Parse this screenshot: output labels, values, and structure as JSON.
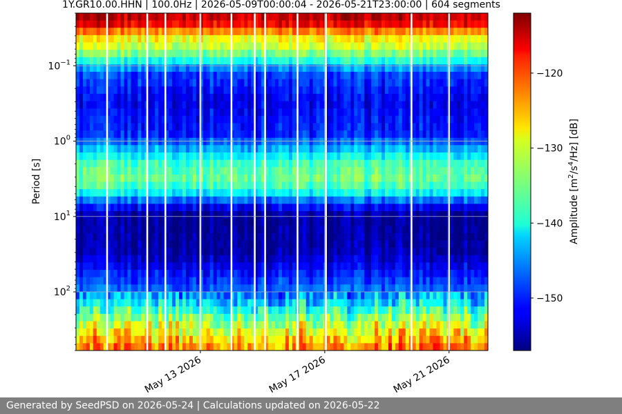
{
  "chart_data": {
    "type": "heatmap",
    "title": "1Y.GR10.00.HHN | 100.0Hz | 2026-05-09T00:00:04 - 2026-05-21T23:00:00 | 604 segments",
    "xlabel": "",
    "ylabel": "Period [s]",
    "yscale": "log",
    "y_inverted": true,
    "ylim": [
      0.02,
      600
    ],
    "yticks": [
      {
        "value": 0.1,
        "base": "10",
        "exp": "−1"
      },
      {
        "value": 1,
        "base": "10",
        "exp": "0"
      },
      {
        "value": 10,
        "base": "10",
        "exp": "1"
      },
      {
        "value": 100,
        "base": "10",
        "exp": "2"
      }
    ],
    "xlim": [
      "2026-05-09",
      "2026-05-22T06:00"
    ],
    "xticks": [
      {
        "date": "2026-05-13",
        "label": "May 13 2026"
      },
      {
        "date": "2026-05-17",
        "label": "May 17 2026"
      },
      {
        "date": "2026-05-21",
        "label": "May 21 2026"
      }
    ],
    "grid": true,
    "colormap": "jet",
    "colorbar": {
      "label": "Amplitude [m²/s⁴/Hz] [dB]",
      "range": [
        -157,
        -112
      ],
      "ticks": [
        -120,
        -130,
        -140,
        -150
      ]
    },
    "data_gaps": [
      "2026-05-10T00:00",
      "2026-05-11T07:00",
      "2026-05-11T21:00",
      "2026-05-13T00:00",
      "2026-05-14T00:00",
      "2026-05-14T18:00",
      "2026-05-15T02:00",
      "2026-05-16T03:00",
      "2026-05-17T01:00",
      "2026-05-19T19:00",
      "2026-05-21T00:00"
    ],
    "spectral_bands": [
      {
        "period_range": [
          0.02,
          0.035
        ],
        "level_db": -118
      },
      {
        "period_range": [
          0.035,
          0.08
        ],
        "level_db": -131
      },
      {
        "period_range": [
          0.12,
          0.9
        ],
        "level_db": -151
      },
      {
        "period_range": [
          1.5,
          5
        ],
        "level_db": -135
      },
      {
        "period_range": [
          10,
          60
        ],
        "level_db": -155
      },
      {
        "period_range": [
          150,
          600
        ],
        "level_db": -130
      }
    ]
  },
  "footer": {
    "text": "Generated by SeedPSD on 2026-05-24 | Calculations updated on 2026-05-22"
  }
}
